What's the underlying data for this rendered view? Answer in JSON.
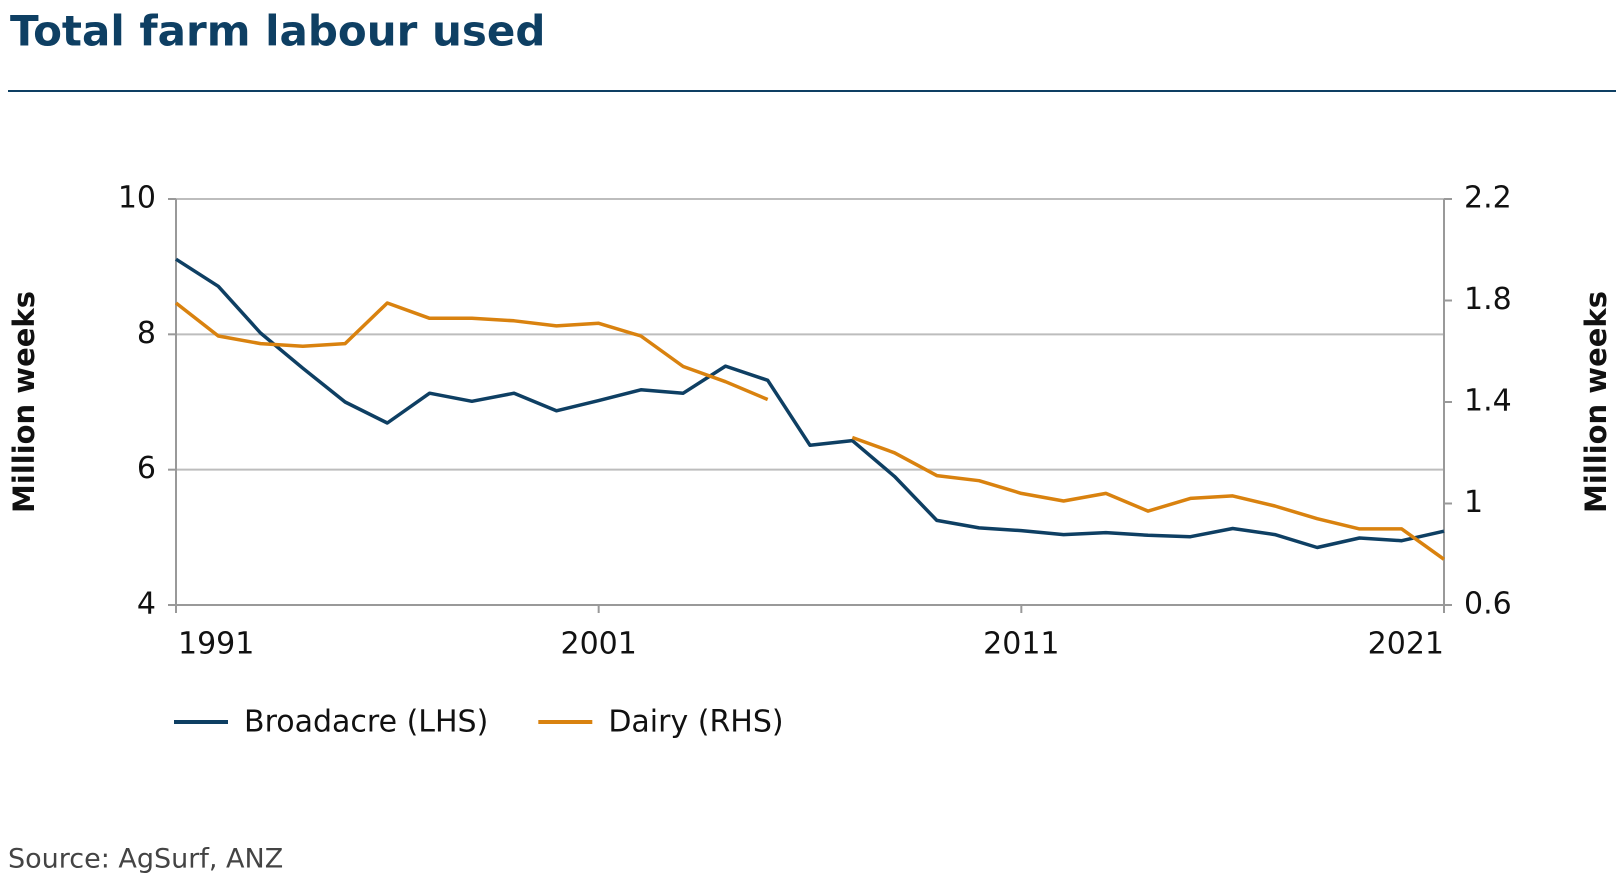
{
  "chart_data": {
    "type": "line",
    "title": "Total farm labour used",
    "ylabel": "Million weeks",
    "y2label": "Million weeks",
    "source": "Source: AgSurf, ANZ",
    "x": [
      1991,
      1992,
      1993,
      1994,
      1995,
      1996,
      1997,
      1998,
      1999,
      2000,
      2001,
      2002,
      2003,
      2004,
      2005,
      2006,
      2007,
      2008,
      2009,
      2010,
      2011,
      2012,
      2013,
      2014,
      2015,
      2016,
      2017,
      2018,
      2019,
      2020,
      2021
    ],
    "xlim": [
      1991,
      2021
    ],
    "xticks": [
      1991,
      2001,
      2011,
      2021
    ],
    "ylim": [
      4,
      10
    ],
    "yticks": [
      4,
      6,
      8,
      10
    ],
    "y2lim": [
      0.6,
      2.2
    ],
    "y2ticks": [
      0.6,
      1.0,
      1.4,
      1.8,
      2.2
    ],
    "grid": true,
    "legend": "bottom",
    "series": [
      {
        "name": "Broadacre (LHS)",
        "color": "#0e3f63",
        "axis": "y",
        "values": [
          9.11,
          8.71,
          8.02,
          7.5,
          7.0,
          6.69,
          7.13,
          7.01,
          7.13,
          6.87,
          7.02,
          7.18,
          7.13,
          7.53,
          7.32,
          6.36,
          6.43,
          5.9,
          5.25,
          5.14,
          5.1,
          5.04,
          5.07,
          5.03,
          5.01,
          5.13,
          5.04,
          4.85,
          4.99,
          4.95,
          5.09
        ]
      },
      {
        "name": "Dairy (RHS)",
        "color": "#d9820f",
        "axis": "y2",
        "values": [
          1.79,
          1.66,
          1.63,
          1.62,
          1.63,
          1.79,
          1.73,
          1.73,
          1.72,
          1.7,
          1.71,
          1.66,
          1.54,
          1.48,
          1.41,
          null,
          1.26,
          1.2,
          1.11,
          1.09,
          1.04,
          1.01,
          1.04,
          0.97,
          1.02,
          1.03,
          0.99,
          0.94,
          0.9,
          0.9,
          0.78
        ]
      }
    ]
  }
}
